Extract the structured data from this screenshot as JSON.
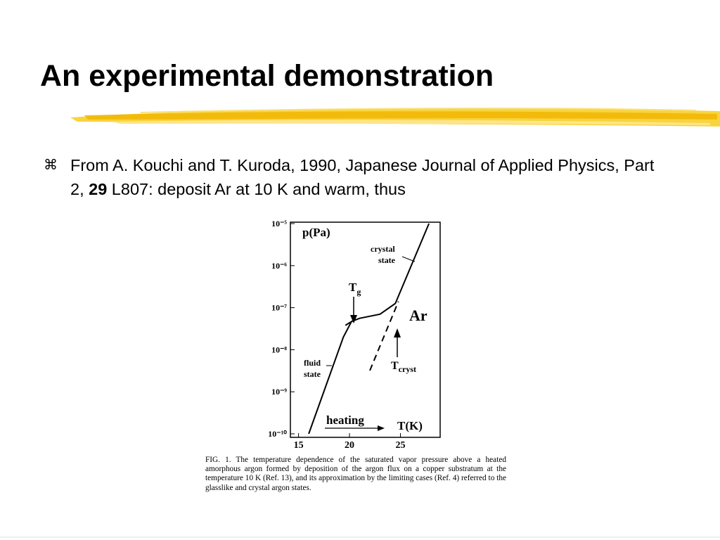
{
  "title": "An experimental demonstration",
  "bullet": {
    "marker": "⌘",
    "parts": [
      "From A. Kouchi and T. Kuroda, 1990, Japanese Journal of Applied Physics, Part 2, ",
      "29",
      " L807: deposit Ar at 10 K and warm, thus"
    ]
  },
  "figure": {
    "chart_data": {
      "type": "line",
      "y_label": "p(Pa)",
      "x_label": "T(K)",
      "log_y": true,
      "xlim": [
        14.2,
        28.9
      ],
      "xticks": [
        15,
        20,
        25
      ],
      "ylim": [
        1e-10,
        1e-05
      ],
      "yticks": [
        {
          "value": 1e-05,
          "label": "10⁻⁵"
        },
        {
          "value": 1e-06,
          "label": "10⁻⁶"
        },
        {
          "value": 1e-07,
          "label": "10⁻⁷"
        },
        {
          "value": 1e-08,
          "label": "10⁻⁸"
        },
        {
          "value": 1e-09,
          "label": "10⁻⁹"
        },
        {
          "value": 1e-10,
          "label": "10⁻¹⁰"
        }
      ],
      "series": [
        {
          "color": "#000000",
          "style": "solid",
          "x": [
            16.0,
            19.4,
            20.2,
            21.0,
            23.0,
            24.5,
            27.8
          ],
          "values": [
            1e-10,
            2e-08,
            4.7e-08,
            5.6e-08,
            7e-08,
            1.26e-07,
            1e-05
          ]
        },
        {
          "color": "#000000",
          "style": "dashed",
          "x": [
            22.0,
            24.8
          ],
          "values": [
            3.2e-09,
            1.4e-07
          ]
        },
        {
          "color": "#000000",
          "style": "dashed",
          "x": [
            19.6,
            20.6
          ],
          "values": [
            3.8e-08,
            5.4e-08
          ]
        }
      ],
      "annotations": [
        {
          "text": "crystal",
          "sub": ""
        },
        {
          "text": "state",
          "sub": ""
        },
        {
          "text": "T",
          "sub": "g"
        },
        {
          "text": "Ar",
          "sub": ""
        },
        {
          "text": "fluid",
          "sub": ""
        },
        {
          "text": "state",
          "sub": ""
        },
        {
          "text": "T",
          "sub": "cryst"
        },
        {
          "text": "heating",
          "sub": ""
        }
      ]
    },
    "caption": "FIG. 1. The temperature dependence of the saturated vapor pressure above a heated amorphous argon formed by deposition of the argon flux on a copper substratum at the temperature 10 K (Ref. 13), and its approximation by the limiting cases (Ref. 4) referred to the glasslike and crystal argon states."
  }
}
